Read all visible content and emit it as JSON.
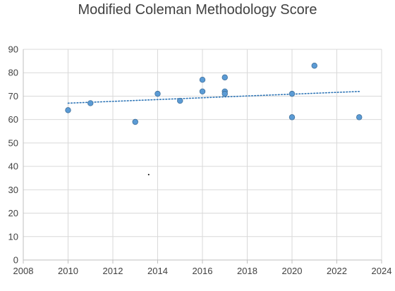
{
  "chart_data": {
    "type": "scatter",
    "title": "Modified Coleman Methodology Score",
    "xlabel": "",
    "ylabel": "",
    "xlim": [
      2008,
      2024
    ],
    "ylim": [
      0,
      90
    ],
    "x_ticks": [
      "2008",
      "2010",
      "2012",
      "2014",
      "2016",
      "2018",
      "2020",
      "2022",
      "2024"
    ],
    "y_ticks": [
      "0",
      "10",
      "20",
      "30",
      "40",
      "50",
      "60",
      "70",
      "80",
      "90"
    ],
    "grid": true,
    "legend": "none",
    "points": [
      {
        "x": 2010,
        "y": 64
      },
      {
        "x": 2011,
        "y": 67
      },
      {
        "x": 2013,
        "y": 59
      },
      {
        "x": 2014,
        "y": 71
      },
      {
        "x": 2015,
        "y": 68
      },
      {
        "x": 2016,
        "y": 77
      },
      {
        "x": 2016,
        "y": 72
      },
      {
        "x": 2017,
        "y": 78
      },
      {
        "x": 2017,
        "y": 72
      },
      {
        "x": 2017,
        "y": 71
      },
      {
        "x": 2020,
        "y": 71
      },
      {
        "x": 2020,
        "y": 61
      },
      {
        "x": 2021,
        "y": 83
      },
      {
        "x": 2023,
        "y": 61
      }
    ],
    "stray_marks": [
      {
        "x": 2013.6,
        "y": 36.5
      }
    ],
    "trendline": {
      "style": "dotted",
      "x": [
        2010,
        2023
      ],
      "y": [
        67,
        72
      ]
    },
    "colors": {
      "point": "#5b9bd5",
      "point_edge": "#41719c",
      "trendline": "#2e75b6",
      "grid": "#d9d9d9",
      "axis": "#bfbfbf",
      "text": "#404040"
    }
  }
}
